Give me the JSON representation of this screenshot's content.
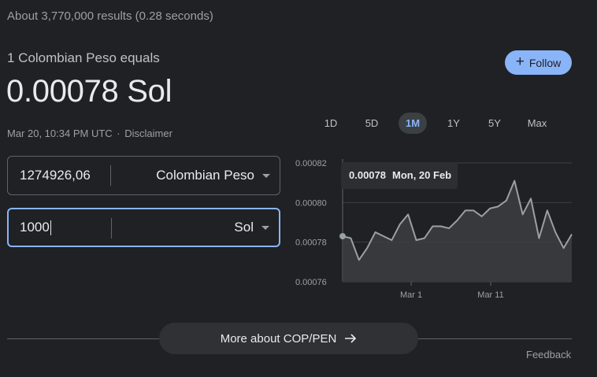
{
  "stats": "About 3,770,000 results (0.28 seconds)",
  "converter": {
    "equals_text": "1 Colombian Peso equals",
    "result": "0.00078 Sol",
    "timestamp": "Mar 20, 10:34 PM UTC",
    "separator": "·",
    "disclaimer": "Disclaimer",
    "follow_label": "Follow",
    "from": {
      "amount": "1274926,06",
      "currency": "Colombian Peso"
    },
    "to": {
      "amount": "1000",
      "currency": "Sol"
    }
  },
  "ranges": [
    {
      "label": "1D",
      "active": false
    },
    {
      "label": "5D",
      "active": false
    },
    {
      "label": "1M",
      "active": true
    },
    {
      "label": "1Y",
      "active": false
    },
    {
      "label": "5Y",
      "active": false
    },
    {
      "label": "Max",
      "active": false
    }
  ],
  "tooltip": {
    "value": "0.00078",
    "date": "Mon, 20 Feb"
  },
  "more_label": "More about COP/PEN",
  "feedback": "Feedback",
  "colors": {
    "accent": "#8ab4f8",
    "background": "#202124",
    "line": "#9aa0a6"
  },
  "chart_data": {
    "type": "area",
    "y_ticks": [
      "0.00082",
      "0.00080",
      "0.00078",
      "0.00076"
    ],
    "ylim": [
      0.00076,
      0.00082
    ],
    "x_ticks": [
      "Mar 1",
      "Mar 11"
    ],
    "grid": true,
    "series": [
      {
        "values": [
          0.000783,
          0.000782,
          0.000771,
          0.000777,
          0.000785,
          0.000783,
          0.000781,
          0.000789,
          0.000794,
          0.000781,
          0.000782,
          0.000788,
          0.000788,
          0.000787,
          0.000791,
          0.000796,
          0.000796,
          0.000793,
          0.000797,
          0.000798,
          0.000801,
          0.000811,
          0.000794,
          0.000802,
          0.000782,
          0.000796,
          0.000785,
          0.000777,
          0.000784
        ]
      }
    ]
  }
}
